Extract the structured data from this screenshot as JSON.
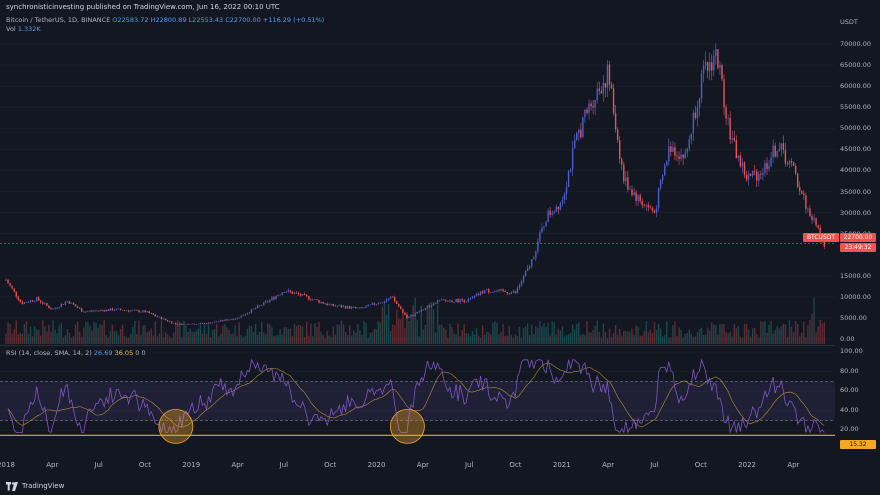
{
  "header": {
    "publish_line": "synchronisticinvesting published on TradingView.com, Jun 16, 2022 00:10 UTC"
  },
  "legend": {
    "symbol": "Bitcoin / TetherUS, 1D, BINANCE",
    "ohlc": "O22583.72 H22800.89 L22553.43 C22700.00 +116.29 (+0.51%)",
    "volume_label": "Vol",
    "volume_value": "1.332K",
    "rsi_label": "RSI (14, close, SMA, 14, 2)",
    "rsi_value": "26.69",
    "rsi_ma": "36.05",
    "rsi_extra": "0 0"
  },
  "price_axis": {
    "currency": "USDT",
    "ticks": [
      "70000.00",
      "65000.00",
      "60000.00",
      "55000.00",
      "50000.00",
      "45000.00",
      "40000.00",
      "35000.00",
      "30000.00",
      "25000.00",
      "15000.00",
      "10000.00",
      "5000.00",
      "0.00"
    ]
  },
  "price_badge": {
    "symbol": "BTCUSDT",
    "price": "22700.00",
    "countdown": "23:49:32"
  },
  "rsi_axis": {
    "ticks": [
      "100.00",
      "80.00",
      "60.00",
      "40.00",
      "20.00"
    ],
    "current": "15.32"
  },
  "time_axis": {
    "labels": [
      "2018",
      "Apr",
      "Jul",
      "Oct",
      "2019",
      "Apr",
      "Jul",
      "Oct",
      "2020",
      "Apr",
      "Jul",
      "Oct",
      "2021",
      "Apr",
      "Jul",
      "Oct",
      "2022",
      "Apr"
    ]
  },
  "footer": {
    "brand": "TradingView"
  },
  "colors": {
    "background": "#131722",
    "up": "#26a69a",
    "down": "#ef5350",
    "rsi_line": "#7e57c2",
    "rsi_ma": "#f5c242",
    "rsi_band": "#7e57c2",
    "highlight": "#f5a623",
    "price_line": "#ef5350"
  },
  "chart_data": {
    "type": "candlestick",
    "x_range": [
      "2018-01",
      "2022-06"
    ],
    "y_range": [
      0,
      70000
    ],
    "price_anchors": [
      {
        "date": "2018-01",
        "price": 14000
      },
      {
        "date": "2018-02",
        "price": 8500
      },
      {
        "date": "2018-03",
        "price": 9500
      },
      {
        "date": "2018-04",
        "price": 7000
      },
      {
        "date": "2018-05",
        "price": 9000
      },
      {
        "date": "2018-06",
        "price": 6500
      },
      {
        "date": "2018-08",
        "price": 7000
      },
      {
        "date": "2018-10",
        "price": 6500
      },
      {
        "date": "2018-12",
        "price": 3500
      },
      {
        "date": "2019-02",
        "price": 3700
      },
      {
        "date": "2019-04",
        "price": 5000
      },
      {
        "date": "2019-06",
        "price": 9000
      },
      {
        "date": "2019-07",
        "price": 11500
      },
      {
        "date": "2019-08",
        "price": 10500
      },
      {
        "date": "2019-10",
        "price": 8000
      },
      {
        "date": "2019-12",
        "price": 7200
      },
      {
        "date": "2020-02",
        "price": 9800
      },
      {
        "date": "2020-03",
        "price": 5000
      },
      {
        "date": "2020-05",
        "price": 9000
      },
      {
        "date": "2020-07",
        "price": 9200
      },
      {
        "date": "2020-08",
        "price": 11500
      },
      {
        "date": "2020-10",
        "price": 11000
      },
      {
        "date": "2020-11",
        "price": 18000
      },
      {
        "date": "2020-12",
        "price": 29000
      },
      {
        "date": "2021-01",
        "price": 33000
      },
      {
        "date": "2021-02",
        "price": 48000
      },
      {
        "date": "2021-03",
        "price": 57000
      },
      {
        "date": "2021-04",
        "price": 63000
      },
      {
        "date": "2021-05",
        "price": 38000
      },
      {
        "date": "2021-06",
        "price": 33000
      },
      {
        "date": "2021-07",
        "price": 30000
      },
      {
        "date": "2021-08",
        "price": 46000
      },
      {
        "date": "2021-09",
        "price": 43000
      },
      {
        "date": "2021-10",
        "price": 61000
      },
      {
        "date": "2021-11",
        "price": 68000
      },
      {
        "date": "2021-12",
        "price": 47000
      },
      {
        "date": "2022-01",
        "price": 38000
      },
      {
        "date": "2022-02",
        "price": 40000
      },
      {
        "date": "2022-03",
        "price": 46000
      },
      {
        "date": "2022-04",
        "price": 40000
      },
      {
        "date": "2022-05",
        "price": 30000
      },
      {
        "date": "2022-06",
        "price": 22700
      }
    ],
    "current_price": 22700,
    "rsi_range": [
      0,
      100
    ],
    "rsi_bands": [
      30,
      70
    ],
    "rsi_support_line": 15,
    "rsi_highlights": [
      {
        "date": "2018-12",
        "rsi": 20
      },
      {
        "date": "2020-03",
        "rsi": 20
      }
    ]
  }
}
